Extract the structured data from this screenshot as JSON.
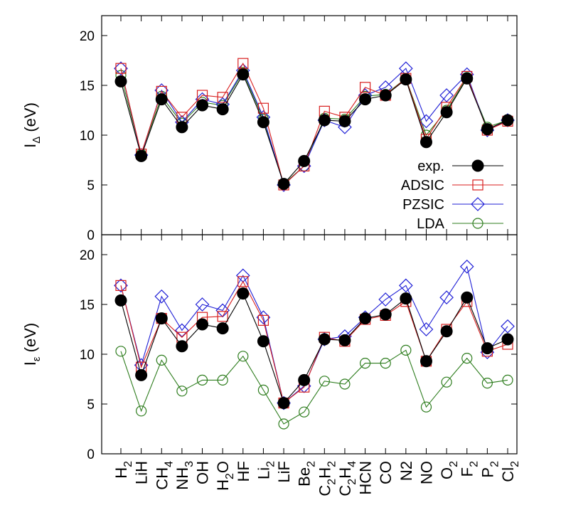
{
  "chart_data": {
    "type": "line",
    "categories": [
      {
        "main": "H",
        "sub": "2"
      },
      {
        "main": "LiH",
        "sub": ""
      },
      {
        "main": "CH",
        "sub": "4"
      },
      {
        "main": "NH",
        "sub": "3"
      },
      {
        "main": "OH",
        "sub": ""
      },
      {
        "main": "H",
        "sub": "2",
        "tail": "O"
      },
      {
        "main": "HF",
        "sub": ""
      },
      {
        "main": "Li",
        "sub": "2"
      },
      {
        "main": "LiF",
        "sub": ""
      },
      {
        "main": "Be",
        "sub": "2"
      },
      {
        "main": "C",
        "sub": "2",
        "tail": "H",
        "sub2": "2"
      },
      {
        "main": "C",
        "sub": "2",
        "tail": "H",
        "sub2": "4"
      },
      {
        "main": "HCN",
        "sub": ""
      },
      {
        "main": "CO",
        "sub": ""
      },
      {
        "main": "N2",
        "sub": ""
      },
      {
        "main": "NO",
        "sub": ""
      },
      {
        "main": "O",
        "sub": "2"
      },
      {
        "main": "F",
        "sub": "2"
      },
      {
        "main": "P",
        "sub": "2"
      },
      {
        "main": "Cl",
        "sub": "2"
      }
    ],
    "panels": [
      {
        "ylabel": {
          "main": "I",
          "sub": "Δ",
          "unit": " (eV)"
        },
        "ylim": [
          0,
          22
        ],
        "yticks": [
          "0",
          "5",
          "10",
          "15",
          "20"
        ],
        "series": [
          {
            "name": "LDA",
            "color": "#2e7d1e",
            "marker": "circle",
            "values": [
              16.0,
              8.1,
              13.9,
              11.2,
              13.3,
              13.0,
              16.3,
              11.6,
              5.1,
              6.9,
              11.7,
              11.6,
              13.9,
              14.1,
              15.7,
              10.0,
              12.5,
              15.8,
              10.8,
              11.5
            ]
          },
          {
            "name": "PZSIC",
            "color": "#1f1fd6",
            "marker": "diamond",
            "values": [
              16.7,
              8.0,
              14.5,
              11.3,
              13.6,
              13.1,
              16.5,
              11.8,
              5.0,
              6.9,
              11.5,
              10.8,
              14.0,
              14.8,
              16.7,
              11.4,
              14.0,
              16.1,
              10.5,
              11.5
            ]
          },
          {
            "name": "ADSIC",
            "color": "#d81e1e",
            "marker": "square",
            "values": [
              16.7,
              8.1,
              14.4,
              11.8,
              14.0,
              13.8,
              17.2,
              12.7,
              5.0,
              6.9,
              12.4,
              11.8,
              14.8,
              14.0,
              15.7,
              9.6,
              12.8,
              15.9,
              10.5,
              11.4
            ]
          },
          {
            "name": "exp.",
            "color": "#000000",
            "marker": "filled-circle",
            "values": [
              15.4,
              7.9,
              13.6,
              10.8,
              13.0,
              12.6,
              16.1,
              11.3,
              5.1,
              7.4,
              11.5,
              11.4,
              13.6,
              14.0,
              15.6,
              9.3,
              12.3,
              15.7,
              10.6,
              11.5
            ]
          }
        ],
        "legend": {
          "placement": "bottom-right",
          "entries": [
            {
              "name": "exp.",
              "color": "#000000",
              "marker": "filled-circle"
            },
            {
              "name": "ADSIC",
              "color": "#d81e1e",
              "marker": "square"
            },
            {
              "name": "PZSIC",
              "color": "#1f1fd6",
              "marker": "diamond"
            },
            {
              "name": "LDA",
              "color": "#2e7d1e",
              "marker": "circle"
            }
          ]
        }
      },
      {
        "ylabel": {
          "main": "I",
          "sub": "ε",
          "unit": " (eV)"
        },
        "ylim": [
          0,
          22
        ],
        "yticks": [
          "0",
          "5",
          "10",
          "15",
          "20"
        ],
        "series": [
          {
            "name": "LDA",
            "color": "#2e7d1e",
            "marker": "circle",
            "values": [
              10.3,
              4.3,
              9.4,
              6.3,
              7.4,
              7.4,
              9.8,
              6.4,
              3.0,
              4.2,
              7.3,
              7.0,
              9.1,
              9.1,
              10.4,
              4.7,
              7.2,
              9.6,
              7.1,
              7.4
            ]
          },
          {
            "name": "PZSIC",
            "color": "#1f1fd6",
            "marker": "diamond",
            "values": [
              16.9,
              8.9,
              15.8,
              12.4,
              15.0,
              14.4,
              17.9,
              13.7,
              5.1,
              6.8,
              11.5,
              11.8,
              13.7,
              15.5,
              16.9,
              12.5,
              15.7,
              18.8,
              10.2,
              12.8
            ]
          },
          {
            "name": "ADSIC",
            "color": "#d81e1e",
            "marker": "square",
            "values": [
              16.9,
              8.7,
              13.6,
              11.7,
              13.7,
              13.8,
              17.3,
              13.4,
              5.1,
              6.7,
              11.7,
              11.3,
              13.5,
              13.9,
              15.3,
              9.3,
              12.5,
              15.3,
              10.3,
              11.0
            ]
          },
          {
            "name": "exp.",
            "color": "#000000",
            "marker": "filled-circle",
            "values": [
              15.4,
              7.9,
              13.6,
              10.8,
              13.0,
              12.6,
              16.1,
              11.3,
              5.1,
              7.4,
              11.5,
              11.4,
              13.6,
              14.0,
              15.6,
              9.3,
              12.3,
              15.7,
              10.6,
              11.5
            ]
          }
        ]
      }
    ],
    "grid": false
  }
}
